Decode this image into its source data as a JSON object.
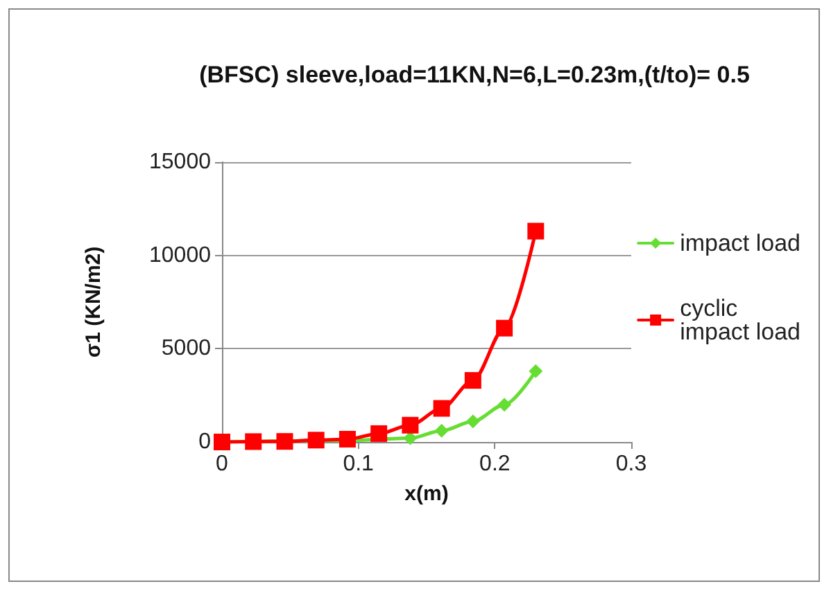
{
  "chart_data": {
    "type": "line",
    "title": "(BFSC) sleeve,load=11KN,N=6,L=0.23m,(t/to)= 0.5",
    "xlabel": "x(m)",
    "ylabel": "σ1 (KN/m2)",
    "x": [
      0,
      0.023,
      0.046,
      0.069,
      0.092,
      0.115,
      0.138,
      0.161,
      0.184,
      0.207,
      0.23
    ],
    "series": [
      {
        "name": "impact load",
        "color": "#66dd33",
        "marker": "diamond",
        "values": [
          0,
          null,
          null,
          null,
          80,
          null,
          200,
          600,
          1100,
          2000,
          3800
        ]
      },
      {
        "name": "cyclic impact load",
        "color": "#ff0000",
        "marker": "square",
        "values": [
          0,
          20,
          30,
          100,
          150,
          450,
          900,
          1800,
          3300,
          6100,
          11300
        ]
      }
    ],
    "xlim": [
      0,
      0.3
    ],
    "xticks": [
      0,
      0.1,
      0.2,
      0.3
    ],
    "ylim": [
      0,
      15000
    ],
    "yticks": [
      0,
      5000,
      10000,
      15000
    ],
    "grid": "y",
    "legend": "right",
    "line_style": "solid"
  }
}
